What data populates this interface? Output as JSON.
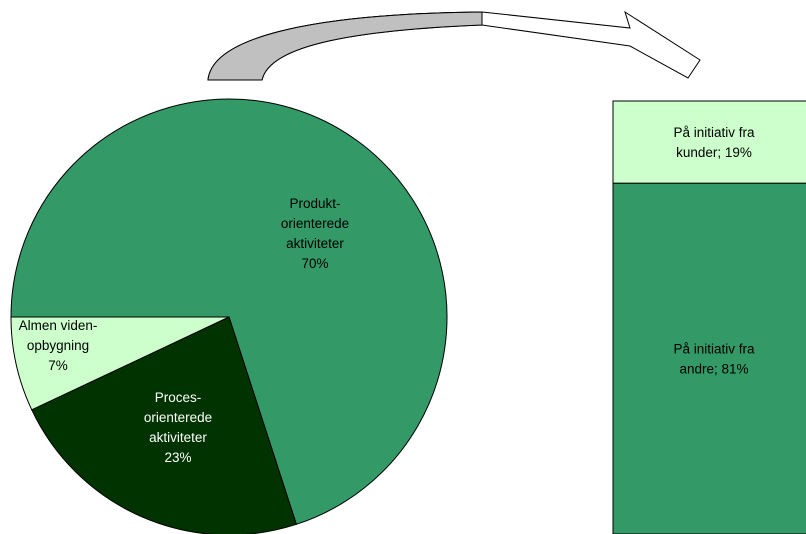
{
  "chart_data": [
    {
      "type": "pie",
      "slices": [
        {
          "label_lines": [
            "Produkt-",
            "orienterede",
            "aktiviteter",
            "70%"
          ],
          "value": 70,
          "color": "#339966",
          "text_color": "#000000"
        },
        {
          "label_lines": [
            "Proces-",
            "orienterede",
            "aktiviteter",
            "23%"
          ],
          "value": 23,
          "color": "#003300",
          "text_color": "#ffffff"
        },
        {
          "label_lines": [
            "Almen viden-",
            "opbygning",
            "7%"
          ],
          "value": 7,
          "color": "#ccffcc",
          "text_color": "#000000"
        }
      ]
    },
    {
      "type": "bar",
      "stacked": true,
      "segments": [
        {
          "label_lines": [
            "På initiativ fra",
            "kunder; 19%"
          ],
          "value": 19,
          "color": "#ccffcc"
        },
        {
          "label_lines": [
            "På initiativ fra",
            "andre; 81%"
          ],
          "value": 81,
          "color": "#339966"
        }
      ]
    }
  ],
  "arrow": {
    "from": "pie",
    "to": "bar",
    "color_top": "#c0c0c0"
  }
}
